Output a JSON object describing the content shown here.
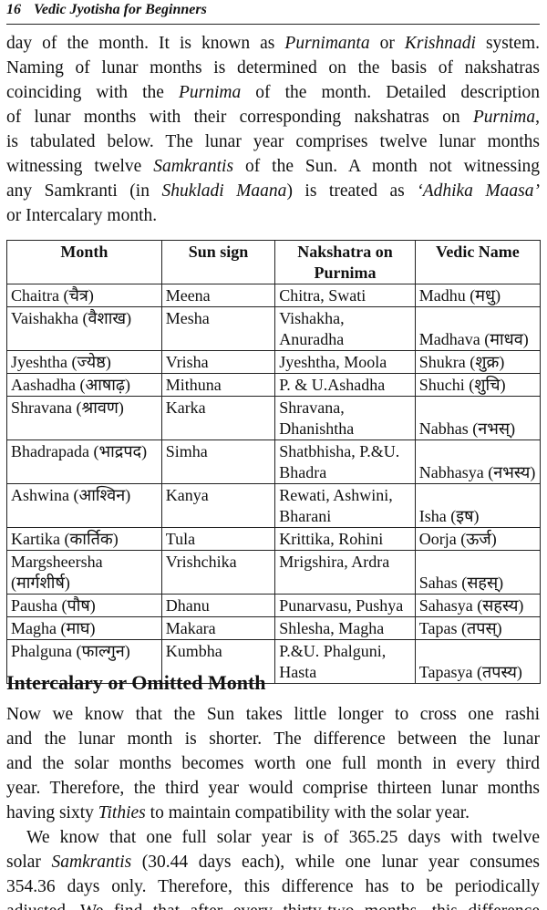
{
  "header": {
    "page_number": "16",
    "book_title": "Vedic Jyotisha for Beginners"
  },
  "para1": [
    [
      {
        "t": "day of the month. It is known as "
      },
      {
        "t": "Purnimanta",
        "i": 1
      },
      {
        "t": " or "
      },
      {
        "t": "Krishnadi",
        "i": 1
      },
      {
        "t": " system."
      }
    ],
    [
      {
        "t": "Naming of lunar months is determined on the basis of nakshatras"
      }
    ],
    [
      {
        "t": "coinciding with the "
      },
      {
        "t": "Purnima",
        "i": 1
      },
      {
        "t": " of the month. Detailed description"
      }
    ],
    [
      {
        "t": "of lunar months with their corresponding nakshatras on "
      },
      {
        "t": "Purnima",
        "i": 1
      },
      {
        "t": ","
      }
    ],
    [
      {
        "t": "is tabulated below. The lunar year comprises twelve lunar months"
      }
    ],
    [
      {
        "t": "witnessing twelve "
      },
      {
        "t": "Samkrantis",
        "i": 1
      },
      {
        "t": " of the Sun. A month not witnessing"
      }
    ],
    [
      {
        "t": "any Samkranti (in "
      },
      {
        "t": "Shukladi Maana",
        "i": 1
      },
      {
        "t": ") is treated as "
      },
      {
        "t": "‘Adhika Maasa’",
        "i": 1
      }
    ],
    [
      {
        "t": "or Intercalary month."
      }
    ]
  ],
  "table": {
    "headers": [
      "Month",
      "Sun sign",
      "Nakshatra on Purnima",
      "Vedic Name"
    ],
    "rows": [
      [
        "Chaitra (चैत्र)",
        "Meena",
        "Chitra, Swati",
        "Madhu (मधु)"
      ],
      [
        "Vaishakha (वैशाख)",
        "Mesha",
        "Vishakha, Anuradha",
        "Madhava (माधव)"
      ],
      [
        "Jyeshtha (ज्येष्ठ)",
        "Vrisha",
        "Jyeshtha, Moola",
        "Shukra (शुक्र)"
      ],
      [
        "Aashadha (आषाढ़)",
        "Mithuna",
        "P. & U.Ashadha",
        "Shuchi (शुचि)"
      ],
      [
        "Shravana (श्रावण)",
        "Karka",
        "Shravana, Dhanishtha",
        "Nabhas (नभस्)"
      ],
      [
        "Bhadrapada (भाद्रपद)",
        "Simha",
        "Shatbhisha, P.&U. Bhadra",
        "Nabhasya (नभस्य)"
      ],
      [
        "Ashwina (आश्विन)",
        "Kanya",
        "Rewati, Ashwini, Bharani",
        "Isha (इष)"
      ],
      [
        "Kartika (कार्तिक)",
        "Tula",
        "Krittika, Rohini",
        "Oorja (ऊर्ज)"
      ],
      [
        "Margsheersha (मार्गशीर्ष)",
        "Vrishchika",
        "Mrigshira, Ardra",
        "Sahas (सहस्)"
      ],
      [
        "Pausha (पौष)",
        "Dhanu",
        "Punarvasu, Pushya",
        "Sahasya (सहस्य)"
      ],
      [
        "Magha (माघ)",
        "Makara",
        "Shlesha, Magha",
        "Tapas (तपस्)"
      ],
      [
        "Phalguna (फाल्गुन)",
        "Kumbha",
        "P.&U. Phalguni, Hasta",
        "Tapasya (तपस्य)"
      ]
    ]
  },
  "section_heading": "Intercalary or Omitted Month",
  "para2": [
    [
      {
        "t": "Now we know that the Sun takes little longer to cross one rashi"
      }
    ],
    [
      {
        "t": "and the lunar month is shorter. The difference between the lunar"
      }
    ],
    [
      {
        "t": "and the solar months becomes worth one full month in every third"
      }
    ],
    [
      {
        "t": "year. Therefore, the third year would comprise thirteen lunar months"
      }
    ],
    [
      {
        "t": "having sixty "
      },
      {
        "t": "Tithies",
        "i": 1
      },
      {
        "t": " to maintain compatibility with the solar year."
      }
    ]
  ],
  "para3": [
    [
      {
        "t": "We know that one full solar year is of 365.25 days with twelve"
      }
    ],
    [
      {
        "t": "solar "
      },
      {
        "t": "Samkrantis",
        "i": 1
      },
      {
        "t": " (30.44 days each), while one lunar year consumes"
      }
    ],
    [
      {
        "t": "354.36 days only. Therefore, this difference has to be periodically"
      }
    ],
    [
      {
        "t": "adjusted. We find that after every thirty-two months, this difference"
      }
    ]
  ]
}
